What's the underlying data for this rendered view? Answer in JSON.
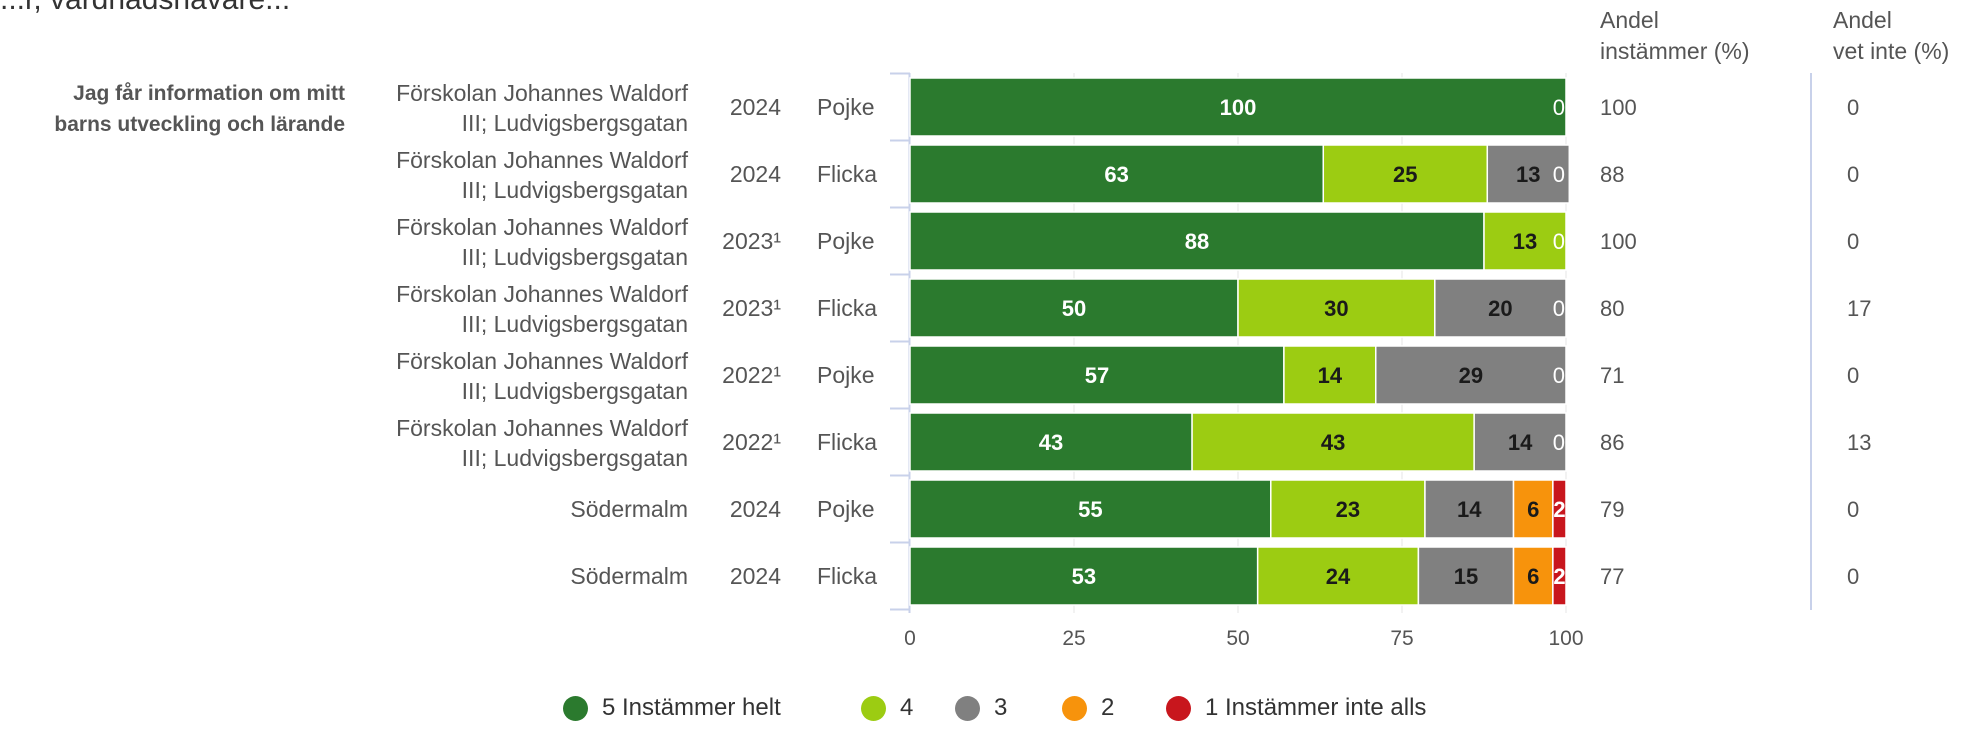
{
  "top_text": "...r, vårdnadshavare...",
  "question_label": [
    "Jag får information om mitt",
    "barns utveckling och lärande"
  ],
  "header_left": [
    "Andel",
    "instämmer (%)"
  ],
  "header_right": [
    "Andel",
    "vet inte (%)"
  ],
  "colors": {
    "5": "#2b7a2e",
    "4": "#9ccc12",
    "3": "#808080",
    "2": "#f7930c",
    "1": "#c8161d",
    "axis": "#c8d1ea",
    "grid": "#e6e6e6"
  },
  "legend": [
    {
      "label": "5 Instämmer helt",
      "color": "#2b7a2e"
    },
    {
      "label": "4",
      "color": "#9ccc12"
    },
    {
      "label": "3",
      "color": "#808080"
    },
    {
      "label": "2",
      "color": "#f7930c"
    },
    {
      "label": "1 Instämmer inte alls",
      "color": "#c8161d"
    }
  ],
  "chart_data": {
    "type": "bar",
    "orientation": "horizontal-stacked",
    "xlim": [
      0,
      100
    ],
    "x_ticks": [
      "0",
      "25",
      "50",
      "75",
      "100"
    ],
    "series_names": [
      "5 Instämmer helt",
      "4",
      "3",
      "2",
      "1 Instämmer inte alls"
    ],
    "rows": [
      {
        "unit": [
          "Förskolan Johannes Waldorf",
          "III; Ludvigsbergsgatan"
        ],
        "year": "2024",
        "gender": "Pojke",
        "values": [
          100,
          0,
          0,
          0,
          0
        ],
        "labels": [
          "100",
          "",
          "",
          "",
          ""
        ],
        "tail": "0",
        "andel_instammer": "100",
        "andel_vet_inte": "0"
      },
      {
        "unit": [
          "Förskolan Johannes Waldorf",
          "III; Ludvigsbergsgatan"
        ],
        "year": "2024",
        "gender": "Flicka",
        "values": [
          63,
          25,
          12.5,
          0,
          0
        ],
        "labels": [
          "63",
          "25",
          "13",
          "",
          ""
        ],
        "tail": "0",
        "andel_instammer": "88",
        "andel_vet_inte": "0"
      },
      {
        "unit": [
          "Förskolan Johannes Waldorf",
          "III; Ludvigsbergsgatan"
        ],
        "year": "2023¹",
        "gender": "Pojke",
        "values": [
          87.5,
          12.5,
          0,
          0,
          0
        ],
        "labels": [
          "88",
          "13",
          "",
          "",
          ""
        ],
        "tail": "0",
        "andel_instammer": "100",
        "andel_vet_inte": "0"
      },
      {
        "unit": [
          "Förskolan Johannes Waldorf",
          "III; Ludvigsbergsgatan"
        ],
        "year": "2023¹",
        "gender": "Flicka",
        "values": [
          50,
          30,
          20,
          0,
          0
        ],
        "labels": [
          "50",
          "30",
          "20",
          "",
          ""
        ],
        "tail": "0",
        "andel_instammer": "80",
        "andel_vet_inte": "17"
      },
      {
        "unit": [
          "Förskolan Johannes Waldorf",
          "III; Ludvigsbergsgatan"
        ],
        "year": "2022¹",
        "gender": "Pojke",
        "values": [
          57,
          14,
          29,
          0,
          0
        ],
        "labels": [
          "57",
          "14",
          "29",
          "",
          ""
        ],
        "tail": "0",
        "andel_instammer": "71",
        "andel_vet_inte": "0"
      },
      {
        "unit": [
          "Förskolan Johannes Waldorf",
          "III; Ludvigsbergsgatan"
        ],
        "year": "2022¹",
        "gender": "Flicka",
        "values": [
          43,
          43,
          14,
          0,
          0
        ],
        "labels": [
          "43",
          "43",
          "14",
          "",
          ""
        ],
        "tail": "0",
        "andel_instammer": "86",
        "andel_vet_inte": "13"
      },
      {
        "unit": [
          "Södermalm"
        ],
        "year": "2024",
        "gender": "Pojke",
        "values": [
          55,
          23.5,
          13.5,
          6,
          2
        ],
        "labels": [
          "55",
          "23",
          "14",
          "6",
          "2"
        ],
        "tail": "",
        "andel_instammer": "79",
        "andel_vet_inte": "0"
      },
      {
        "unit": [
          "Södermalm"
        ],
        "year": "2024",
        "gender": "Flicka",
        "values": [
          53,
          24.5,
          14.5,
          6,
          2
        ],
        "labels": [
          "53",
          "24",
          "15",
          "6",
          "2"
        ],
        "tail": "",
        "andel_instammer": "77",
        "andel_vet_inte": "0"
      }
    ]
  }
}
